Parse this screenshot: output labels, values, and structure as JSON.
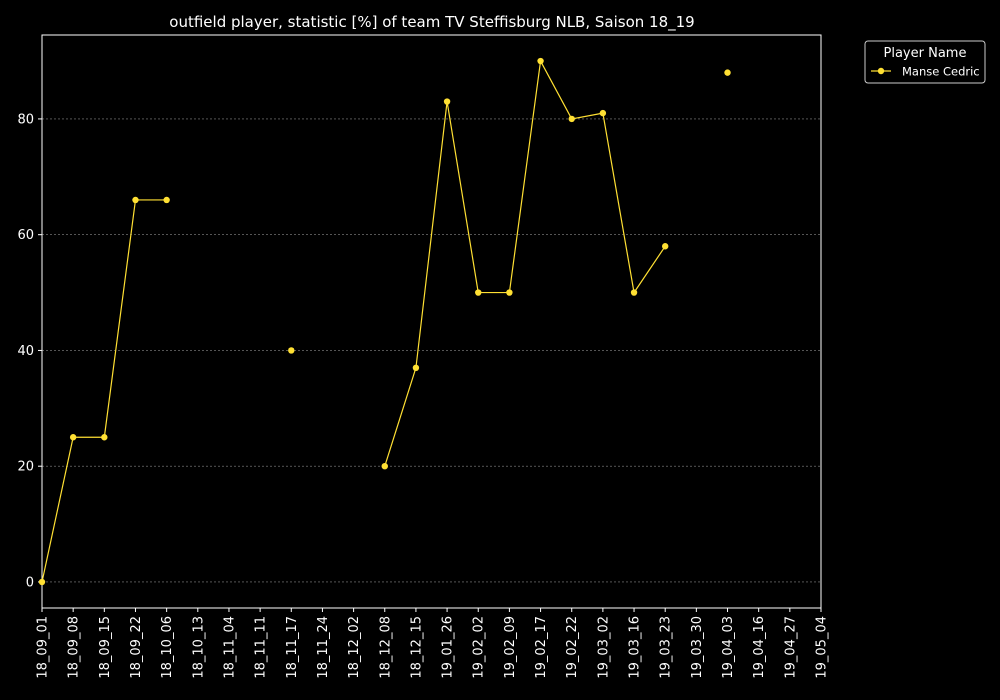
{
  "chart_data": {
    "type": "line",
    "title": "outfield player, statistic [%] of team TV Steffisburg NLB, Saison 18_19",
    "xlabel": "",
    "ylabel": "",
    "categories": [
      "18_09_01",
      "18_09_08",
      "18_09_15",
      "18_09_22",
      "18_10_06",
      "18_10_13",
      "18_11_04",
      "18_11_11",
      "18_11_17",
      "18_11_24",
      "18_12_02",
      "18_12_08",
      "18_12_15",
      "19_01_26",
      "19_02_02",
      "19_02_09",
      "19_02_17",
      "19_02_22",
      "19_03_02",
      "19_03_16",
      "19_03_23",
      "19_03_30",
      "19_04_03",
      "19_04_16",
      "19_04_27",
      "19_05_04"
    ],
    "series": [
      {
        "name": "Manse Cedric",
        "values": [
          0,
          25,
          25,
          66,
          66,
          null,
          null,
          null,
          40,
          null,
          null,
          20,
          37,
          83,
          50,
          50,
          90,
          80,
          81,
          50,
          58,
          null,
          88,
          null,
          null,
          null
        ]
      }
    ],
    "ylim": [
      -4.5,
      94.5
    ],
    "yticks": [
      0,
      20,
      40,
      60,
      80
    ],
    "legend": {
      "title": "Player Name",
      "position": "top-right (outside plot)"
    },
    "grid": "horizontal dashed",
    "colors": {
      "background": "#000000",
      "text": "#ffffff",
      "line": "#ffe033",
      "marker": "#ffe033",
      "grid": "#888888"
    }
  }
}
